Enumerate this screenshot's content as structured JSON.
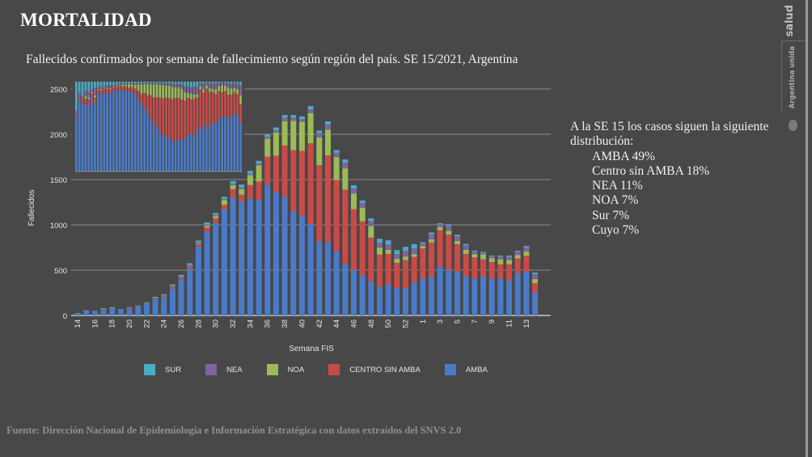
{
  "slide": {
    "title": "MORTALIDAD",
    "subtitle": "Fallecidos confirmados por semana de fallecimiento según región del país. SE 15/2021, Argentina",
    "side_intro": "A la SE 15 los casos siguen la siguiente distribución:",
    "side_items": [
      "AMBA 49%",
      "Centro sin AMBA 18%",
      "NEA 11%",
      "NOA 7%",
      "Sur 7%",
      "Cuyo 7%"
    ],
    "footer": "Fuente: Dirección Nacional de Epidemiología e Información Estratégica con datos extraídos del SNVS 2.0",
    "brand_salud": "salud",
    "brand_unida": "Argentina unida",
    "brand_icon": "escudo-icon"
  },
  "chart_data": {
    "type": "bar",
    "stacked": true,
    "xlabel": "Semana FIS",
    "ylabel": "Fallecidos",
    "ylim": [
      0,
      2500
    ],
    "yticks": [
      "0",
      "500",
      "1000",
      "1500",
      "2000",
      "2500"
    ],
    "grid": true,
    "legend_position": "bottom",
    "categories": [
      "14",
      "15",
      "16",
      "17",
      "18",
      "19",
      "20",
      "21",
      "22",
      "23",
      "24",
      "25",
      "26",
      "27",
      "28",
      "29",
      "30",
      "31",
      "32",
      "33",
      "34",
      "35",
      "36",
      "37",
      "38",
      "39",
      "40",
      "41",
      "42",
      "43",
      "44",
      "45",
      "46",
      "47",
      "48",
      "49",
      "50",
      "51",
      "52",
      "53",
      "1",
      "2",
      "3",
      "4",
      "5",
      "6",
      "7",
      "8",
      "9",
      "10",
      "11",
      "12",
      "13",
      "14"
    ],
    "series": [
      {
        "name": "AMBA",
        "color": "#4a7bc8",
        "values": [
          15,
          45,
          38,
          60,
          68,
          58,
          68,
          95,
          125,
          182,
          205,
          295,
          400,
          520,
          760,
          925,
          1020,
          1170,
          1305,
          1260,
          1290,
          1280,
          1440,
          1360,
          1310,
          1150,
          1099,
          1009,
          820,
          811,
          707,
          566,
          503,
          443,
          377,
          314,
          344,
          302,
          302,
          365,
          407,
          431,
          539,
          503,
          482,
          431,
          407,
          431,
          407,
          407,
          386,
          464,
          482,
          257
        ]
      },
      {
        "name": "CENTRO SIN AMBA",
        "color": "#c94a46",
        "values": [
          0,
          2,
          2,
          5,
          6,
          3,
          8,
          4,
          6,
          8,
          10,
          20,
          18,
          22,
          30,
          45,
          52,
          51,
          89,
          74,
          149,
          198,
          312,
          404,
          567,
          674,
          718,
          892,
          839,
          955,
          787,
          823,
          671,
          596,
          482,
          357,
          336,
          279,
          309,
          282,
          333,
          374,
          401,
          389,
          305,
          249,
          234,
          189,
          183,
          159,
          180,
          165,
          177,
          99
        ]
      },
      {
        "name": "NOA",
        "color": "#9bbb59",
        "values": [
          0,
          0,
          0,
          2,
          2,
          1,
          2,
          1,
          2,
          2,
          2,
          3,
          4,
          5,
          8,
          20,
          24,
          54,
          45,
          60,
          110,
          179,
          200,
          257,
          269,
          325,
          321,
          333,
          308,
          285,
          254,
          234,
          173,
          150,
          129,
          78,
          45,
          45,
          39,
          30,
          23,
          36,
          36,
          42,
          36,
          45,
          36,
          54,
          42,
          54,
          45,
          36,
          45,
          45
        ]
      },
      {
        "name": "NEA",
        "color": "#8064a2",
        "values": [
          2,
          3,
          2,
          5,
          6,
          2,
          8,
          3,
          4,
          4,
          8,
          12,
          8,
          9,
          9,
          12,
          12,
          10,
          15,
          21,
          18,
          20,
          21,
          24,
          36,
          33,
          29,
          42,
          45,
          57,
          48,
          63,
          55,
          50,
          54,
          55,
          60,
          50,
          62,
          65,
          30,
          55,
          30,
          55,
          50,
          50,
          28,
          20,
          20,
          30,
          35,
          40,
          45,
          55
        ]
      },
      {
        "name": "SUR",
        "color": "#4bacc6",
        "values": [
          8,
          7,
          8,
          8,
          10,
          6,
          6,
          7,
          8,
          9,
          10,
          13,
          18,
          20,
          20,
          25,
          23,
          25,
          30,
          30,
          30,
          30,
          30,
          30,
          30,
          30,
          30,
          35,
          30,
          35,
          30,
          35,
          35,
          30,
          30,
          43,
          44,
          45,
          45,
          45,
          15,
          20,
          12,
          17,
          19,
          15,
          10,
          9,
          9,
          11,
          15,
          10,
          17,
          17
        ]
      }
    ],
    "legend_order": [
      "SUR",
      "NEA",
      "NOA",
      "CENTRO SIN AMBA",
      "AMBA"
    ]
  }
}
